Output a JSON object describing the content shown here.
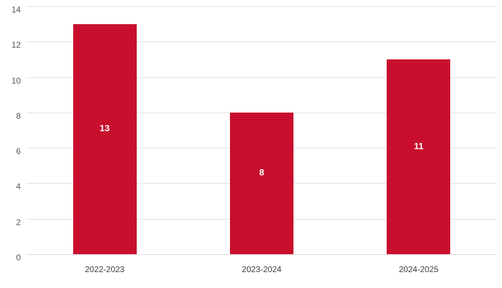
{
  "chart_data": {
    "type": "bar",
    "categories": [
      "2022-2023",
      "2023-2024",
      "2024-2025"
    ],
    "values": [
      13,
      8,
      11
    ],
    "bar_labels": [
      "13",
      "8",
      "11"
    ],
    "title": "",
    "xlabel": "",
    "ylabel": "",
    "ylim": [
      0,
      14
    ],
    "yticks": [
      0,
      2,
      4,
      6,
      8,
      10,
      12,
      14
    ],
    "grid": true,
    "legend": false,
    "colors": {
      "bar": "#C8102E",
      "bar_label": "#FFFFFF",
      "gridline": "#E3E3E3",
      "baseline": "#DBDBDB",
      "ytick_text": "#555555",
      "xlabel_text": "#3D3D3D",
      "background": "#FFFFFF"
    }
  }
}
